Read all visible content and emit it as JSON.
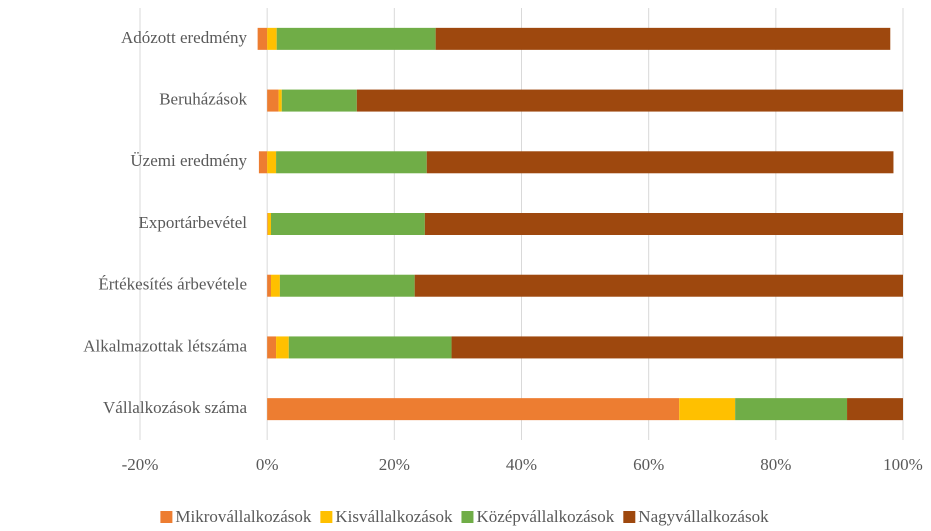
{
  "chart_data": {
    "type": "stacked-barh",
    "categories": [
      "Adózott eredmény",
      "Beruházások",
      "Üzemi eredmény",
      "Exportárbevétel",
      "Értékesítés árbevétele",
      "Alkalmazottak létszáma",
      "Vállalkozások száma"
    ],
    "series": [
      {
        "name": "Mikrovállalkozások",
        "color": "#ED7D31",
        "values": [
          -1.5,
          1.8,
          -1.3,
          0.1,
          0.6,
          1.4,
          64.8
        ]
      },
      {
        "name": "Kisvállalkozások",
        "color": "#FFC000",
        "values": [
          1.5,
          0.5,
          1.4,
          0.5,
          1.4,
          2.0,
          8.8
        ]
      },
      {
        "name": "Középvállalkozások",
        "color": "#70AD47",
        "values": [
          25,
          11.8,
          23.7,
          24.2,
          21.2,
          25.6,
          17.6
        ]
      },
      {
        "name": "Nagyvállalkozások",
        "color": "#9E480E",
        "values": [
          71.5,
          85.9,
          73.4,
          75.2,
          76.8,
          71,
          8.8
        ]
      }
    ],
    "xlim": [
      -20,
      100
    ],
    "xticks": [
      {
        "value": -20,
        "label": "-20%"
      },
      {
        "value": 0,
        "label": "0%"
      },
      {
        "value": 20,
        "label": "20%"
      },
      {
        "value": 40,
        "label": "40%"
      },
      {
        "value": 60,
        "label": "60%"
      },
      {
        "value": 80,
        "label": "80%"
      },
      {
        "value": 100,
        "label": "100%"
      }
    ],
    "grid": true,
    "legend": "bottom"
  }
}
